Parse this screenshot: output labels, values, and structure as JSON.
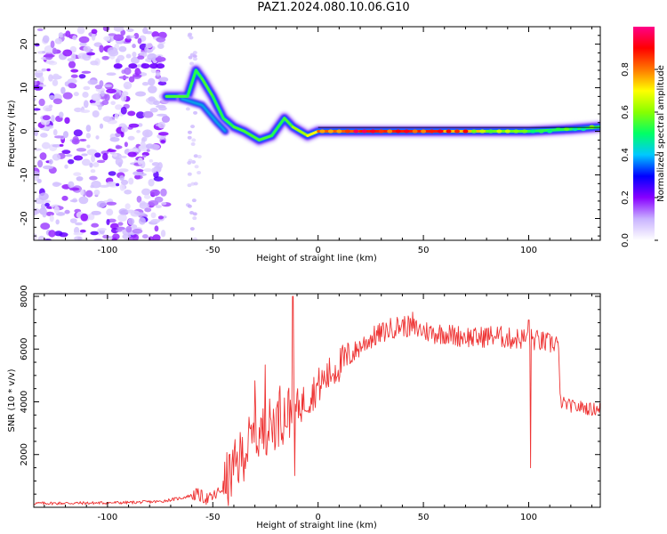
{
  "figure": {
    "title": "PAZ1.2024.080.10.06.G10"
  },
  "chart_data": [
    {
      "type": "heatmap",
      "xlabel": "Height of straight line (km)",
      "ylabel": "Frequency (Hz)",
      "xlim": [
        -135,
        134
      ],
      "ylim": [
        -25,
        24
      ],
      "xticks": [
        -100,
        -50,
        0,
        50,
        100
      ],
      "yticks": [
        -20,
        -10,
        0,
        10,
        20
      ],
      "grid": false,
      "colorbar": {
        "label": "Normalized spectral amplitude",
        "range": [
          0,
          1
        ],
        "ticks": [
          "0.0",
          "0.2",
          "0.4",
          "0.6",
          "0.8"
        ],
        "colors": [
          "#ffffff",
          "#c9b3ff",
          "#8800ff",
          "#0000ff",
          "#00c8ff",
          "#00ff66",
          "#88ff00",
          "#ffff00",
          "#ff7700",
          "#ff0000",
          "#ff0088"
        ]
      },
      "ridge": [
        {
          "x": -72,
          "y": 8,
          "amp": 0.55
        },
        {
          "x": -62,
          "y": 8,
          "amp": 0.55
        },
        {
          "x": -58,
          "y": 14,
          "amp": 0.5
        },
        {
          "x": -55,
          "y": 12,
          "amp": 0.55
        },
        {
          "x": -50,
          "y": 8,
          "amp": 0.55
        },
        {
          "x": -45,
          "y": 3,
          "amp": 0.5
        },
        {
          "x": -40,
          "y": 1,
          "amp": 0.55
        },
        {
          "x": -35,
          "y": 0,
          "amp": 0.55
        },
        {
          "x": -28,
          "y": -2,
          "amp": 0.55
        },
        {
          "x": -22,
          "y": -1,
          "amp": 0.55
        },
        {
          "x": -16,
          "y": 3,
          "amp": 0.5
        },
        {
          "x": -12,
          "y": 1,
          "amp": 0.6
        },
        {
          "x": -5,
          "y": -1,
          "amp": 0.65
        },
        {
          "x": 0,
          "y": 0,
          "amp": 0.75
        },
        {
          "x": 20,
          "y": 0,
          "amp": 0.9
        },
        {
          "x": 40,
          "y": 0,
          "amp": 0.85
        },
        {
          "x": 60,
          "y": 0,
          "amp": 0.9
        },
        {
          "x": 80,
          "y": 0,
          "amp": 0.6
        },
        {
          "x": 100,
          "y": 0,
          "amp": 0.55
        },
        {
          "x": 120,
          "y": 0.5,
          "amp": 0.5
        },
        {
          "x": 134,
          "y": 1,
          "amp": 0.55
        }
      ],
      "noise_region": {
        "x": [
          -135,
          -72
        ],
        "y": [
          -25,
          24
        ]
      }
    },
    {
      "type": "line",
      "xlabel": "Height of straight line (km)",
      "ylabel": "SNR (10 * v/v)",
      "xlim": [
        -135,
        134
      ],
      "ylim": [
        0,
        8100
      ],
      "xticks": [
        -100,
        -50,
        0,
        50,
        100
      ],
      "yticks": [
        2000,
        4000,
        6000,
        8000
      ],
      "grid": false,
      "color": "#ee3333",
      "x": [
        -135,
        -110,
        -90,
        -75,
        -65,
        -58,
        -52,
        -48,
        -44,
        -40,
        -36,
        -32,
        -28,
        -24,
        -20,
        -16,
        -12,
        -8,
        -4,
        0,
        5,
        10,
        15,
        20,
        25,
        30,
        35,
        40,
        45,
        50,
        55,
        60,
        65,
        70,
        75,
        80,
        85,
        90,
        95,
        100,
        105,
        110,
        114,
        115,
        118,
        122,
        126,
        130,
        134
      ],
      "y": [
        150,
        160,
        180,
        220,
        350,
        500,
        300,
        500,
        900,
        1400,
        2000,
        2500,
        2700,
        3000,
        3300,
        3500,
        3700,
        3900,
        4200,
        4600,
        5000,
        5400,
        5700,
        6100,
        6400,
        6600,
        6800,
        6900,
        6800,
        6700,
        6600,
        6600,
        6500,
        6500,
        6400,
        6500,
        6500,
        6400,
        6400,
        6400,
        6300,
        6200,
        6300,
        4000,
        3900,
        3800,
        3800,
        3700,
        3800
      ],
      "spikes": [
        {
          "x": -30,
          "y": 4800
        },
        {
          "x": -25,
          "y": 5400
        },
        {
          "x": -12,
          "y": 8000
        },
        {
          "x": -18,
          "y": 4600
        },
        {
          "x": -11,
          "y": 1200
        },
        {
          "x": 100,
          "y": 7100
        },
        {
          "x": 101,
          "y": 1500
        },
        {
          "x": 45,
          "y": 7400
        }
      ]
    }
  ]
}
